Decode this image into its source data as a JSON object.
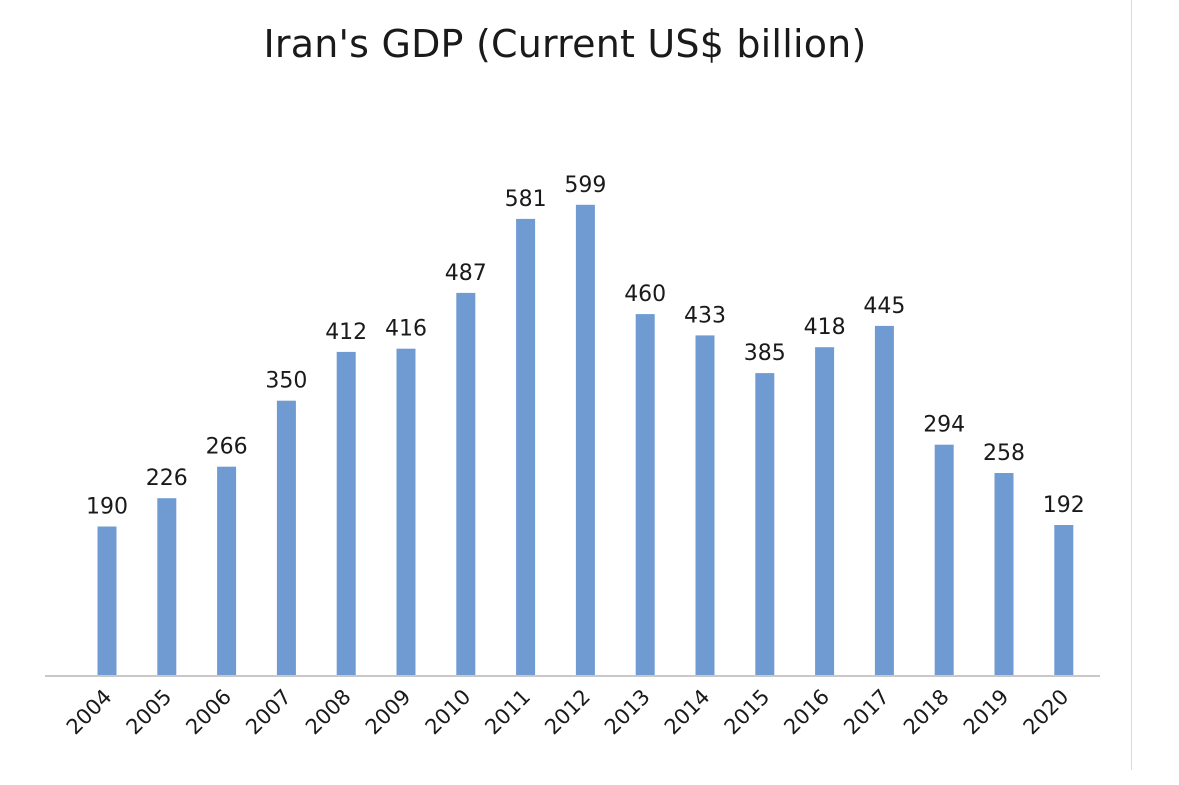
{
  "chart_data": {
    "type": "bar",
    "title": "Iran's GDP (Current US$ billion)",
    "xlabel": "",
    "ylabel": "",
    "categories": [
      "2004",
      "2005",
      "2006",
      "2007",
      "2008",
      "2009",
      "2010",
      "2011",
      "2012",
      "2013",
      "2014",
      "2015",
      "2016",
      "2017",
      "2018",
      "2019",
      "2020"
    ],
    "values": [
      190,
      226,
      266,
      350,
      412,
      416,
      487,
      581,
      599,
      460,
      433,
      385,
      418,
      445,
      294,
      258,
      192
    ],
    "ylim": [
      0,
      600
    ],
    "grid": false,
    "legend": "none",
    "data_labels": true,
    "bar_color": "#6f9bd2",
    "axis_color": "#c8c8c8",
    "text_color": "#1a1a1a"
  }
}
